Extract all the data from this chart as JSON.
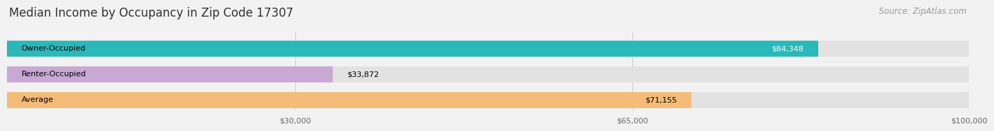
{
  "title": "Median Income by Occupancy in Zip Code 17307",
  "source": "Source: ZipAtlas.com",
  "categories": [
    "Owner-Occupied",
    "Renter-Occupied",
    "Average"
  ],
  "values": [
    84348,
    33872,
    71155
  ],
  "bar_colors": [
    "#2ab8b8",
    "#c9a8d4",
    "#f5bc78"
  ],
  "bar_label_colors": [
    "white",
    "black",
    "black"
  ],
  "bar_labels": [
    "$84,348",
    "$33,872",
    "$71,155"
  ],
  "xlim": [
    0,
    100000
  ],
  "xticks": [
    30000,
    65000,
    100000
  ],
  "xticklabels": [
    "$30,000",
    "$65,000",
    "$100,000"
  ],
  "background_color": "#f2f2f2",
  "bar_bg_color": "#e2e2e2",
  "title_fontsize": 12,
  "source_fontsize": 8.5,
  "label_fontsize": 8,
  "tick_fontsize": 8,
  "bar_height": 0.62
}
